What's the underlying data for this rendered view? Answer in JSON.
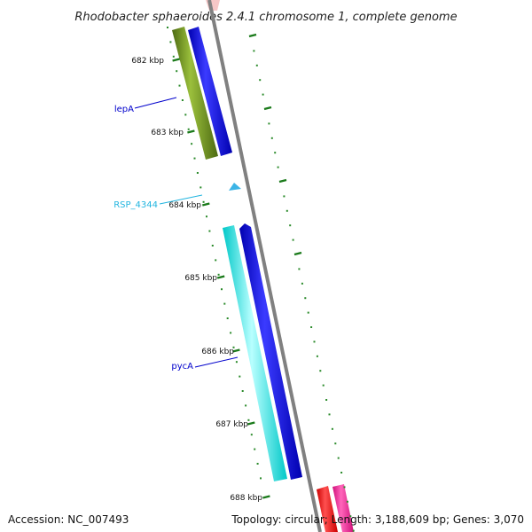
{
  "title": "Rhodobacter sphaeroides 2.4.1 chromosome 1, complete genome",
  "footer": {
    "accession": "Accession: NC_007493",
    "topology": "Topology: circular; Length: 3,188,609 bp; Genes: 3,070"
  },
  "ticks": [
    "682 kbp",
    "683 kbp",
    "684 kbp",
    "685 kbp",
    "686 kbp",
    "687 kbp",
    "688 kbp"
  ],
  "gene_labels": [
    {
      "name": "lepA",
      "color": "#0000cc"
    },
    {
      "name": "RSP_4344",
      "color": "#22b5e0"
    },
    {
      "name": "pycA",
      "color": "#0000cc"
    }
  ],
  "colors": {
    "backbone": "#808080",
    "olive": "#6b8e23",
    "blue": "#0000ee",
    "cyan": "#00ffff",
    "light_blue": "#3cb4e6",
    "red": "#ff0000",
    "pink": "#ff1493",
    "tick": "#1a7a1a",
    "dots": "#2a8a2a"
  }
}
